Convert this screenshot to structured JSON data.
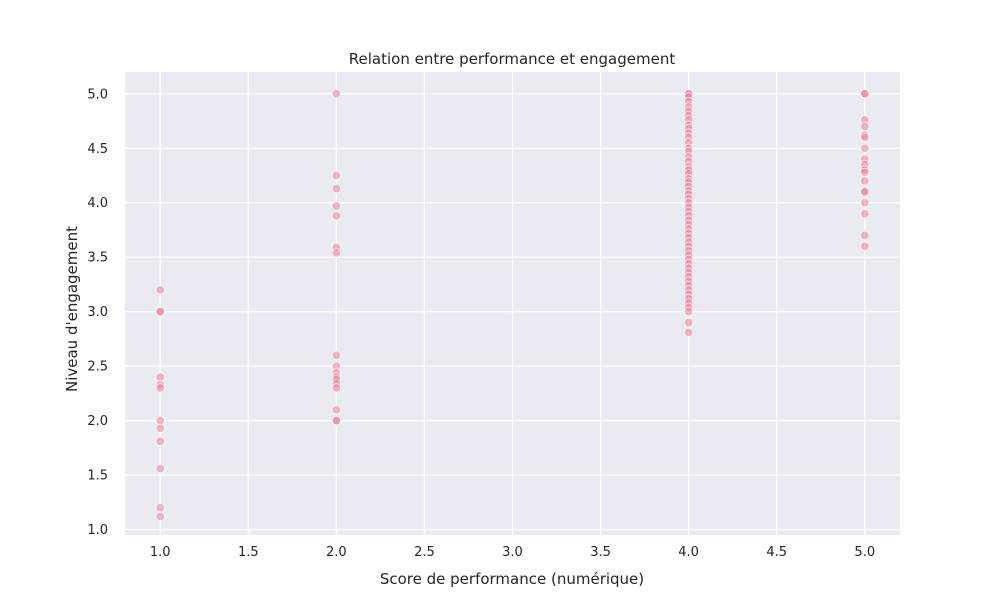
{
  "chart_data": {
    "type": "scatter",
    "title": "Relation entre performance et engagement",
    "xlabel": "Score de performance (numérique)",
    "ylabel": "Niveau d'engagement",
    "xlim": [
      0.8,
      5.2
    ],
    "ylim": [
      0.95,
      5.2
    ],
    "grid": true,
    "xticks": [
      1.0,
      1.5,
      2.0,
      2.5,
      3.0,
      3.5,
      4.0,
      4.5,
      5.0
    ],
    "xtick_labels": [
      "1.0",
      "1.5",
      "2.0",
      "2.5",
      "3.0",
      "3.5",
      "4.0",
      "4.5",
      "5.0"
    ],
    "yticks": [
      1.0,
      1.5,
      2.0,
      2.5,
      3.0,
      3.5,
      4.0,
      4.5,
      5.0
    ],
    "ytick_labels": [
      "1.0",
      "1.5",
      "2.0",
      "2.5",
      "3.0",
      "3.5",
      "4.0",
      "4.5",
      "5.0"
    ],
    "colors": {
      "point": "#f37b95",
      "plot_bg": "#eaeaf2",
      "grid": "#ffffff"
    },
    "points": [
      {
        "x": 1,
        "y": 3.2
      },
      {
        "x": 1,
        "y": 3.0
      },
      {
        "x": 1,
        "y": 3.0
      },
      {
        "x": 1,
        "y": 2.4
      },
      {
        "x": 1,
        "y": 2.33
      },
      {
        "x": 1,
        "y": 2.3
      },
      {
        "x": 1,
        "y": 2.0
      },
      {
        "x": 1,
        "y": 1.93
      },
      {
        "x": 1,
        "y": 1.81
      },
      {
        "x": 1,
        "y": 1.56
      },
      {
        "x": 1,
        "y": 1.2
      },
      {
        "x": 1,
        "y": 1.12
      },
      {
        "x": 2,
        "y": 5.0
      },
      {
        "x": 2,
        "y": 4.25
      },
      {
        "x": 2,
        "y": 4.13
      },
      {
        "x": 2,
        "y": 3.97
      },
      {
        "x": 2,
        "y": 3.88
      },
      {
        "x": 2,
        "y": 3.59
      },
      {
        "x": 2,
        "y": 3.54
      },
      {
        "x": 2,
        "y": 2.6
      },
      {
        "x": 2,
        "y": 2.5
      },
      {
        "x": 2,
        "y": 2.44
      },
      {
        "x": 2,
        "y": 2.4
      },
      {
        "x": 2,
        "y": 2.38
      },
      {
        "x": 2,
        "y": 2.34
      },
      {
        "x": 2,
        "y": 2.3
      },
      {
        "x": 2,
        "y": 2.1
      },
      {
        "x": 2,
        "y": 2.0
      },
      {
        "x": 2,
        "y": 2.0
      },
      {
        "x": 4,
        "y": 5.0
      },
      {
        "x": 4,
        "y": 5.0
      },
      {
        "x": 4,
        "y": 4.97
      },
      {
        "x": 4,
        "y": 4.93
      },
      {
        "x": 4,
        "y": 4.88
      },
      {
        "x": 4,
        "y": 4.84
      },
      {
        "x": 4,
        "y": 4.8
      },
      {
        "x": 4,
        "y": 4.76
      },
      {
        "x": 4,
        "y": 4.71
      },
      {
        "x": 4,
        "y": 4.68
      },
      {
        "x": 4,
        "y": 4.64
      },
      {
        "x": 4,
        "y": 4.6
      },
      {
        "x": 4,
        "y": 4.55
      },
      {
        "x": 4,
        "y": 4.5
      },
      {
        "x": 4,
        "y": 4.47
      },
      {
        "x": 4,
        "y": 4.42
      },
      {
        "x": 4,
        "y": 4.38
      },
      {
        "x": 4,
        "y": 4.33
      },
      {
        "x": 4,
        "y": 4.3
      },
      {
        "x": 4,
        "y": 4.27
      },
      {
        "x": 4,
        "y": 4.22
      },
      {
        "x": 4,
        "y": 4.19
      },
      {
        "x": 4,
        "y": 4.15
      },
      {
        "x": 4,
        "y": 4.11
      },
      {
        "x": 4,
        "y": 4.08
      },
      {
        "x": 4,
        "y": 4.04
      },
      {
        "x": 4,
        "y": 4.0
      },
      {
        "x": 4,
        "y": 3.96
      },
      {
        "x": 4,
        "y": 3.92
      },
      {
        "x": 4,
        "y": 3.88
      },
      {
        "x": 4,
        "y": 3.84
      },
      {
        "x": 4,
        "y": 3.8
      },
      {
        "x": 4,
        "y": 3.76
      },
      {
        "x": 4,
        "y": 3.72
      },
      {
        "x": 4,
        "y": 3.68
      },
      {
        "x": 4,
        "y": 3.64
      },
      {
        "x": 4,
        "y": 3.6
      },
      {
        "x": 4,
        "y": 3.56
      },
      {
        "x": 4,
        "y": 3.52
      },
      {
        "x": 4,
        "y": 3.48
      },
      {
        "x": 4,
        "y": 3.44
      },
      {
        "x": 4,
        "y": 3.4
      },
      {
        "x": 4,
        "y": 3.36
      },
      {
        "x": 4,
        "y": 3.32
      },
      {
        "x": 4,
        "y": 3.28
      },
      {
        "x": 4,
        "y": 3.24
      },
      {
        "x": 4,
        "y": 3.2
      },
      {
        "x": 4,
        "y": 3.16
      },
      {
        "x": 4,
        "y": 3.12
      },
      {
        "x": 4,
        "y": 3.08
      },
      {
        "x": 4,
        "y": 3.04
      },
      {
        "x": 4,
        "y": 3.0
      },
      {
        "x": 4,
        "y": 2.9
      },
      {
        "x": 4,
        "y": 2.81
      },
      {
        "x": 5,
        "y": 5.0
      },
      {
        "x": 5,
        "y": 5.0
      },
      {
        "x": 5,
        "y": 4.76
      },
      {
        "x": 5,
        "y": 4.7
      },
      {
        "x": 5,
        "y": 4.62
      },
      {
        "x": 5,
        "y": 4.6
      },
      {
        "x": 5,
        "y": 4.5
      },
      {
        "x": 5,
        "y": 4.4
      },
      {
        "x": 5,
        "y": 4.35
      },
      {
        "x": 5,
        "y": 4.3
      },
      {
        "x": 5,
        "y": 4.28
      },
      {
        "x": 5,
        "y": 4.2
      },
      {
        "x": 5,
        "y": 4.1
      },
      {
        "x": 5,
        "y": 4.1
      },
      {
        "x": 5,
        "y": 4.0
      },
      {
        "x": 5,
        "y": 3.9
      },
      {
        "x": 5,
        "y": 3.7
      },
      {
        "x": 5,
        "y": 3.6
      }
    ]
  }
}
